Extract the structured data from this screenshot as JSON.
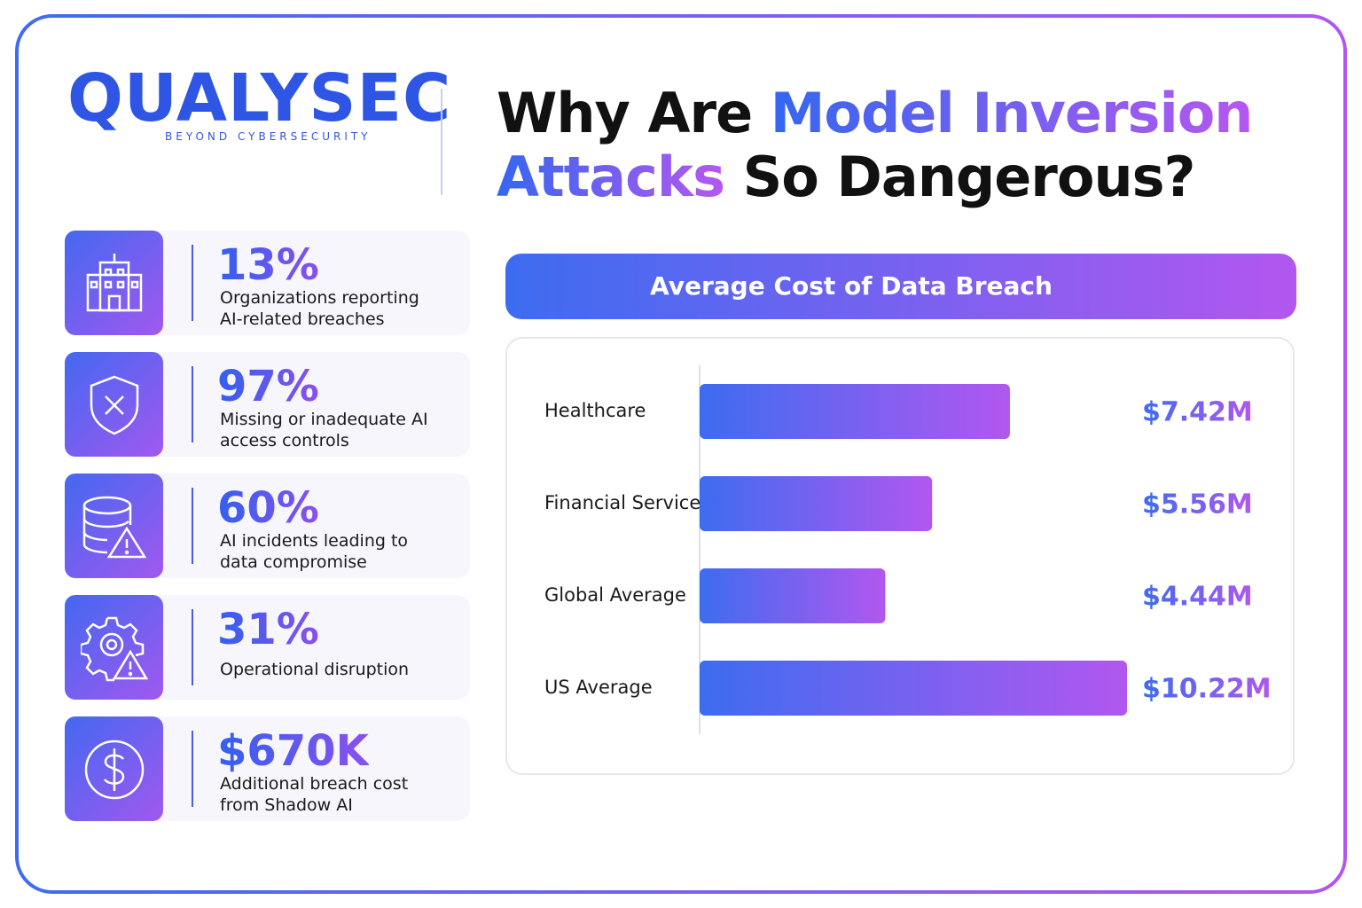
{
  "header": {
    "logo": "QUALYSEC",
    "tagline": "BEYOND CYBERSECURITY",
    "title": {
      "line1": [
        "Why Are",
        "Model Inversion"
      ],
      "line2": [
        "Attacks",
        "So Dangerous?"
      ]
    }
  },
  "stats": [
    {
      "value": "13%",
      "label": "Organizations reporting AI-related breaches"
    },
    {
      "value": "97%",
      "label": "Missing or inadequate AI access controls"
    },
    {
      "value": "60%",
      "label": "AI incidents leading to data compromise"
    },
    {
      "value": "31%",
      "label": "Operational disruption"
    },
    {
      "value": "$670K",
      "label": "Additional breach cost from Shadow AI"
    }
  ],
  "chart_data": {
    "type": "hbar",
    "title": "Average Cost of Data Breach",
    "categories": [
      "Healthcare",
      "Financial Services",
      "Global Average",
      "US Average"
    ],
    "values": [
      7.42,
      5.56,
      4.44,
      10.22
    ],
    "value_labels": [
      "$7.42M",
      "$5.56M",
      "$4.44M",
      "$10.22M"
    ],
    "colors": [
      "#3d6cf0",
      "#b257f0"
    ]
  }
}
